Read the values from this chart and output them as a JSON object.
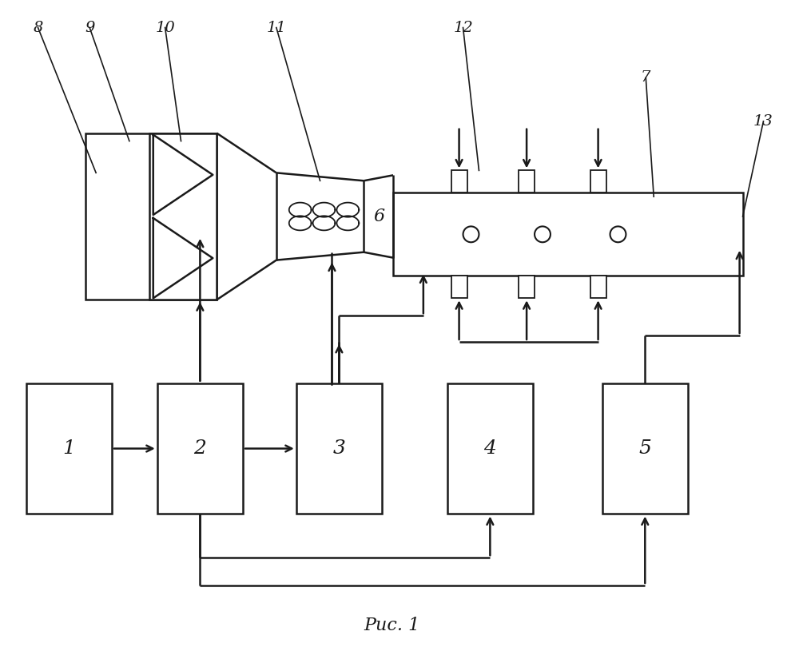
{
  "bg_color": "#ffffff",
  "line_color": "#1a1a1a",
  "caption": "Рис. 1",
  "lw": 1.5
}
